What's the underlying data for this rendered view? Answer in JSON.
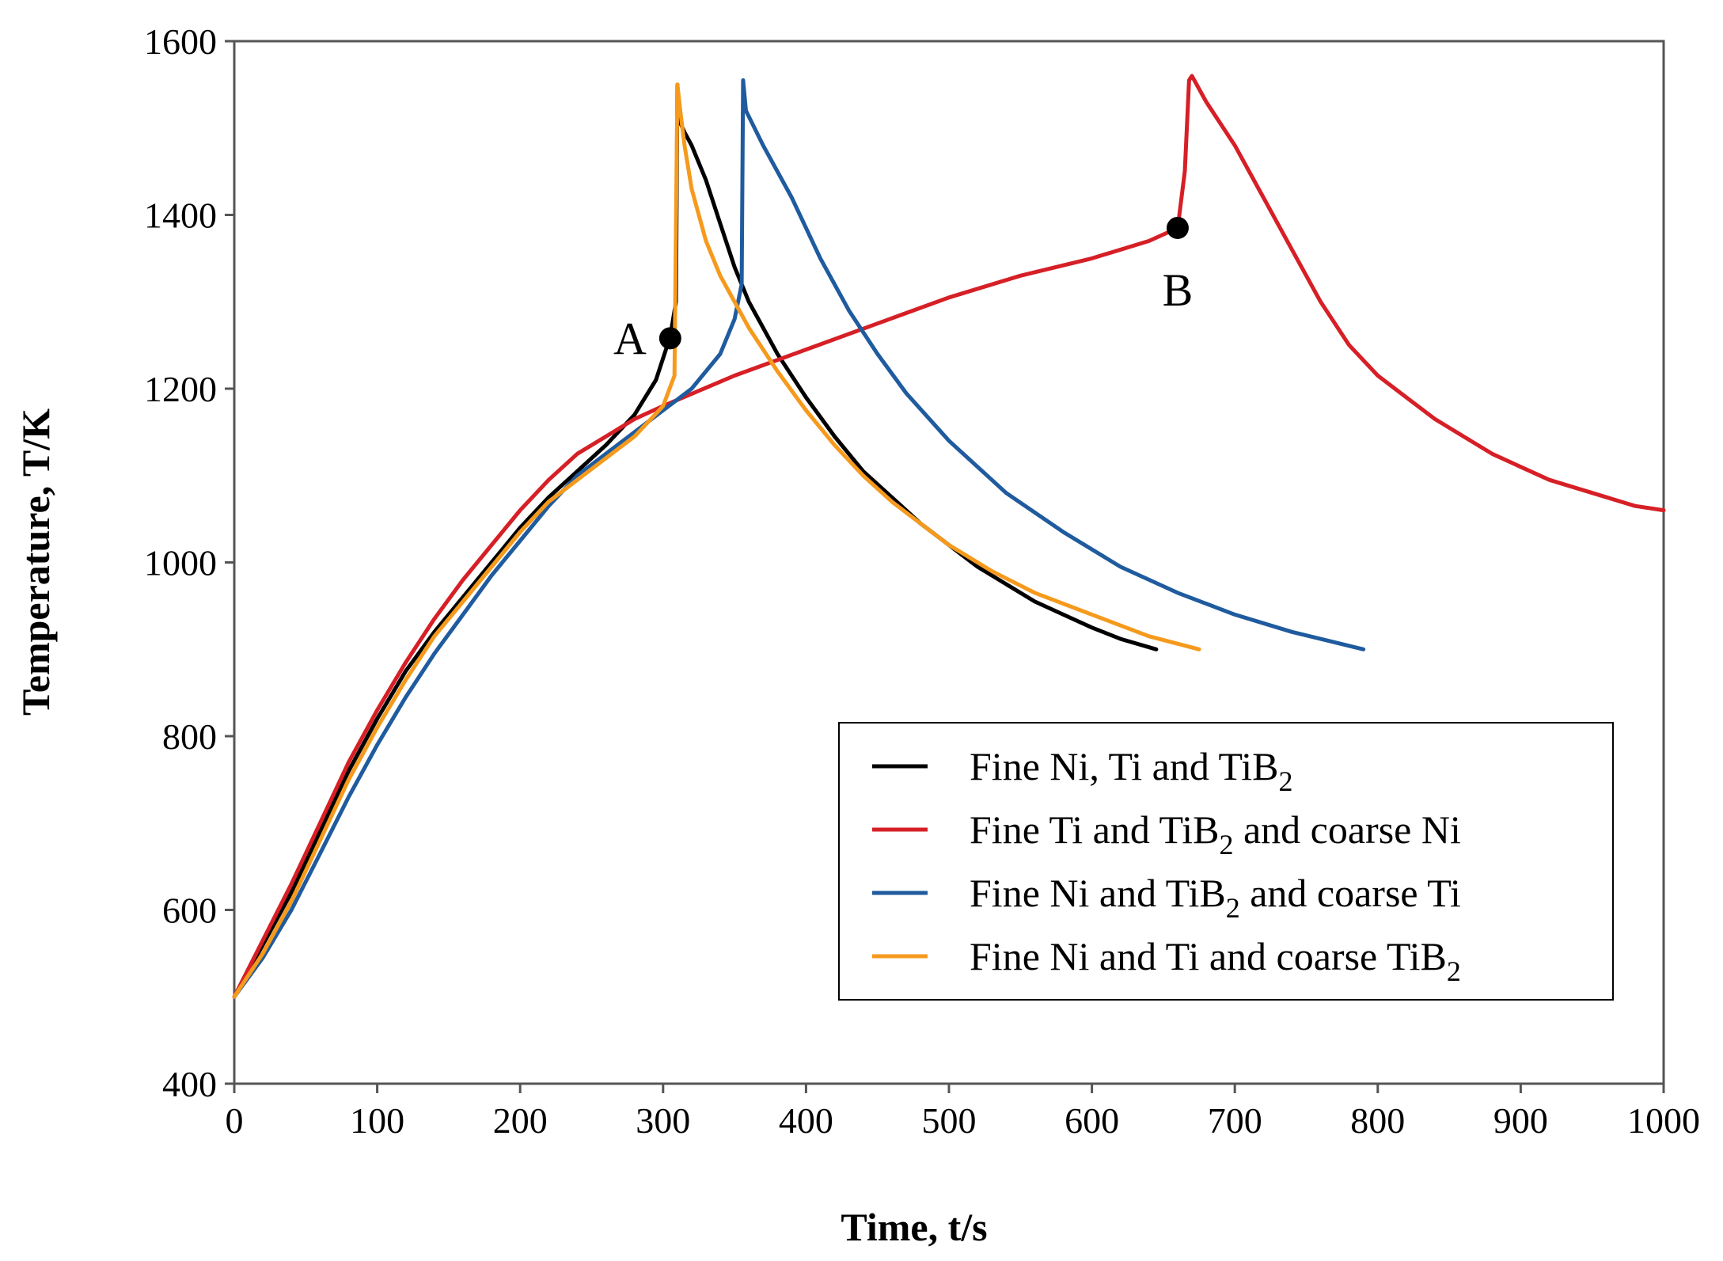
{
  "chart_data": {
    "type": "line",
    "title": "",
    "xlabel": "Time, t/s",
    "ylabel": "Temperature, T/K",
    "xlim": [
      0,
      1000
    ],
    "ylim": [
      400,
      1600
    ],
    "xticks": [
      "0",
      "100",
      "200",
      "300",
      "400",
      "500",
      "600",
      "700",
      "800",
      "900",
      "1000"
    ],
    "yticks": [
      "400",
      "600",
      "800",
      "1000",
      "1200",
      "1400",
      "1600"
    ],
    "grid": false,
    "legend_position": "lower-right",
    "series": [
      {
        "name": "Fine Ni, Ti and TiB2",
        "legend": {
          "main": "Fine Ni, Ti and TiB",
          "sub": "2",
          "tail": ""
        },
        "color": "#000000",
        "x": [
          0,
          20,
          40,
          60,
          80,
          100,
          120,
          140,
          160,
          180,
          200,
          220,
          240,
          260,
          280,
          295,
          305,
          309,
          310,
          311,
          315,
          320,
          330,
          340,
          350,
          360,
          380,
          400,
          420,
          440,
          460,
          480,
          500,
          520,
          540,
          560,
          580,
          600,
          620,
          645
        ],
        "y": [
          500,
          560,
          620,
          690,
          760,
          820,
          875,
          920,
          960,
          1000,
          1040,
          1075,
          1105,
          1135,
          1170,
          1210,
          1260,
          1300,
          1550,
          1510,
          1495,
          1480,
          1440,
          1390,
          1340,
          1300,
          1240,
          1190,
          1145,
          1105,
          1075,
          1045,
          1020,
          995,
          975,
          955,
          940,
          925,
          912,
          900
        ]
      },
      {
        "name": "Fine Ti and TiB2 and coarse Ni",
        "legend": {
          "main": "Fine Ti and TiB",
          "sub": "2",
          "tail": " and coarse Ni"
        },
        "color": "#d61f26",
        "x": [
          0,
          20,
          40,
          60,
          80,
          100,
          120,
          140,
          160,
          180,
          200,
          220,
          240,
          260,
          280,
          300,
          350,
          400,
          450,
          500,
          550,
          600,
          640,
          660,
          665,
          668,
          670,
          680,
          700,
          720,
          740,
          760,
          780,
          800,
          820,
          840,
          860,
          880,
          900,
          920,
          940,
          960,
          980,
          1000
        ],
        "y": [
          500,
          565,
          630,
          700,
          770,
          830,
          885,
          935,
          980,
          1020,
          1060,
          1095,
          1125,
          1145,
          1165,
          1180,
          1215,
          1245,
          1275,
          1305,
          1330,
          1350,
          1370,
          1385,
          1450,
          1555,
          1560,
          1530,
          1480,
          1420,
          1360,
          1300,
          1250,
          1215,
          1190,
          1165,
          1145,
          1125,
          1110,
          1095,
          1085,
          1075,
          1065,
          1060
        ]
      },
      {
        "name": "Fine Ni and TiB2 and coarse Ti",
        "legend": {
          "main": "Fine Ni and TiB",
          "sub": "2",
          "tail": " and coarse Ti"
        },
        "color": "#1f5b9e",
        "x": [
          0,
          20,
          40,
          60,
          80,
          100,
          120,
          140,
          160,
          180,
          200,
          220,
          240,
          260,
          280,
          300,
          320,
          340,
          350,
          355,
          356,
          358,
          370,
          390,
          410,
          430,
          450,
          470,
          500,
          540,
          580,
          620,
          660,
          700,
          740,
          790
        ],
        "y": [
          500,
          545,
          600,
          665,
          730,
          790,
          845,
          895,
          940,
          985,
          1025,
          1065,
          1100,
          1125,
          1150,
          1175,
          1200,
          1240,
          1280,
          1320,
          1555,
          1520,
          1480,
          1420,
          1350,
          1290,
          1240,
          1195,
          1140,
          1080,
          1035,
          995,
          965,
          940,
          920,
          900
        ]
      },
      {
        "name": "Fine Ni and Ti and coarse TiB2",
        "legend": {
          "main": "Fine Ni and Ti and coarse TiB",
          "sub": "2",
          "tail": ""
        },
        "color": "#f59a1d",
        "x": [
          0,
          20,
          40,
          60,
          80,
          100,
          120,
          140,
          160,
          180,
          200,
          220,
          240,
          260,
          280,
          300,
          308,
          310,
          312,
          315,
          320,
          330,
          340,
          360,
          380,
          400,
          420,
          440,
          460,
          480,
          500,
          530,
          560,
          600,
          640,
          675
        ],
        "y": [
          500,
          550,
          610,
          680,
          750,
          810,
          865,
          915,
          955,
          995,
          1035,
          1070,
          1095,
          1120,
          1145,
          1180,
          1215,
          1550,
          1520,
          1480,
          1430,
          1370,
          1330,
          1270,
          1220,
          1175,
          1135,
          1100,
          1070,
          1045,
          1020,
          990,
          965,
          940,
          915,
          900
        ]
      }
    ],
    "annotations": [
      {
        "label": "A",
        "x": 305,
        "y": 1258
      },
      {
        "label": "B",
        "x": 660,
        "y": 1385
      }
    ]
  }
}
